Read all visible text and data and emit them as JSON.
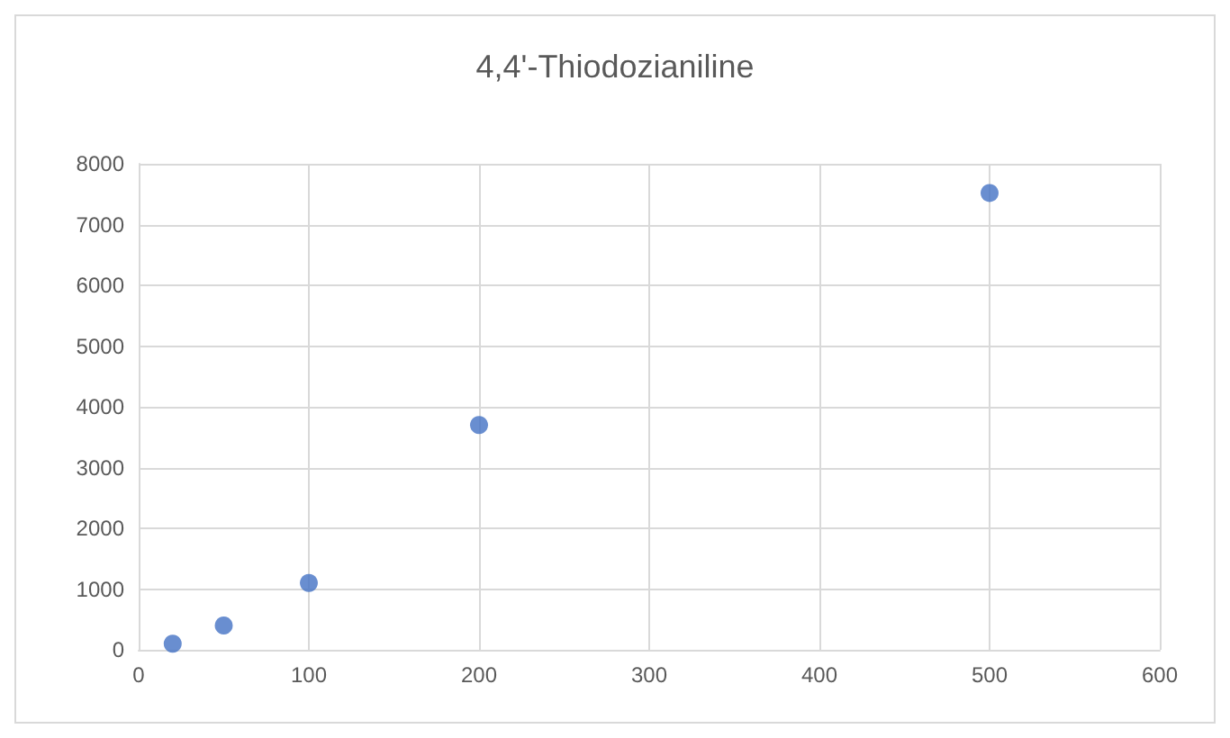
{
  "chart_data": {
    "type": "scatter",
    "title": "4,4'-Thiodozianiline",
    "x": [
      20,
      50,
      100,
      200,
      500
    ],
    "series": [
      {
        "color": "#4472c4",
        "values": [
          100,
          400,
          1100,
          3700,
          7520
        ]
      }
    ],
    "xlim": [
      0,
      600
    ],
    "xticks": [
      0,
      100,
      200,
      300,
      400,
      500,
      600
    ],
    "ylim": [
      0,
      8000
    ],
    "yticks": [
      0,
      1000,
      2000,
      3000,
      4000,
      5000,
      6000,
      7000,
      8000
    ],
    "grid": true,
    "marker": "circle"
  }
}
